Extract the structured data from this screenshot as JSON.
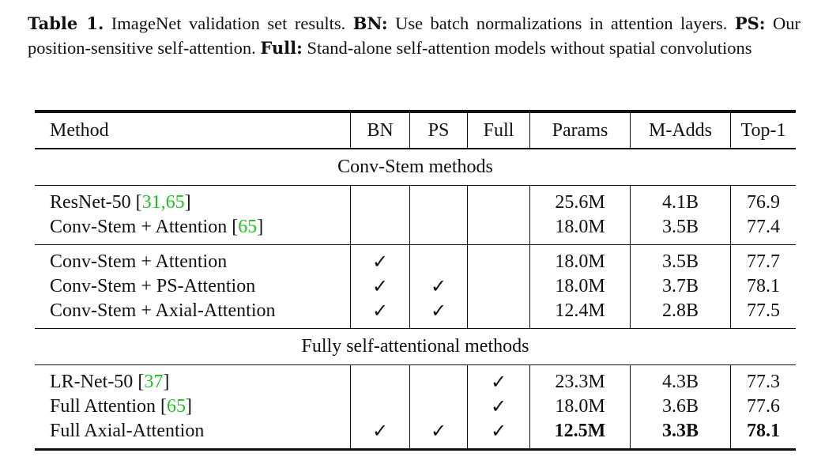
{
  "caption": {
    "label": "Table 1.",
    "text1": " ImageNet validation set results. ",
    "bn_key": "BN:",
    "text2": " Use batch normalizations in attention layers. ",
    "ps_key": "PS:",
    "text3": " Our position-sensitive self-attention. ",
    "full_key": "Full:",
    "text4": " Stand-alone self-attention models without spatial convolutions"
  },
  "table": {
    "headers": [
      "Method",
      "BN",
      "PS",
      "Full",
      "Params",
      "M-Adds",
      "Top-1"
    ],
    "section1": "Conv-Stem methods",
    "section2": "Fully self-attentional methods",
    "check": "✓",
    "rows": [
      {
        "method": "ResNet-50 ",
        "cite_open": "[",
        "cite": "31,65",
        "cite_close": "]",
        "params": "25.6M",
        "madds": "4.1B",
        "top1": "76.9"
      },
      {
        "method": "Conv-Stem + Attention ",
        "cite_open": "[",
        "cite": "65",
        "cite_close": "]",
        "params": "18.0M",
        "madds": "3.5B",
        "top1": "77.4"
      },
      {
        "method": "Conv-Stem + Attention",
        "params": "18.0M",
        "madds": "3.5B",
        "top1": "77.7"
      },
      {
        "method": "Conv-Stem + PS-Attention",
        "params": "18.0M",
        "madds": "3.7B",
        "top1": "78.1"
      },
      {
        "method": "Conv-Stem + Axial-Attention",
        "params": "12.4M",
        "madds": "2.8B",
        "top1": "77.5"
      },
      {
        "method": "LR-Net-50 ",
        "cite_open": "[",
        "cite": "37",
        "cite_close": "]",
        "params": "23.3M",
        "madds": "4.3B",
        "top1": "77.3"
      },
      {
        "method": "Full Attention ",
        "cite_open": "[",
        "cite": "65",
        "cite_close": "]",
        "params": "18.0M",
        "madds": "3.6B",
        "top1": "77.6"
      },
      {
        "method": "Full Axial-Attention",
        "params": "12.5M",
        "madds": "3.3B",
        "top1": "78.1"
      }
    ]
  }
}
